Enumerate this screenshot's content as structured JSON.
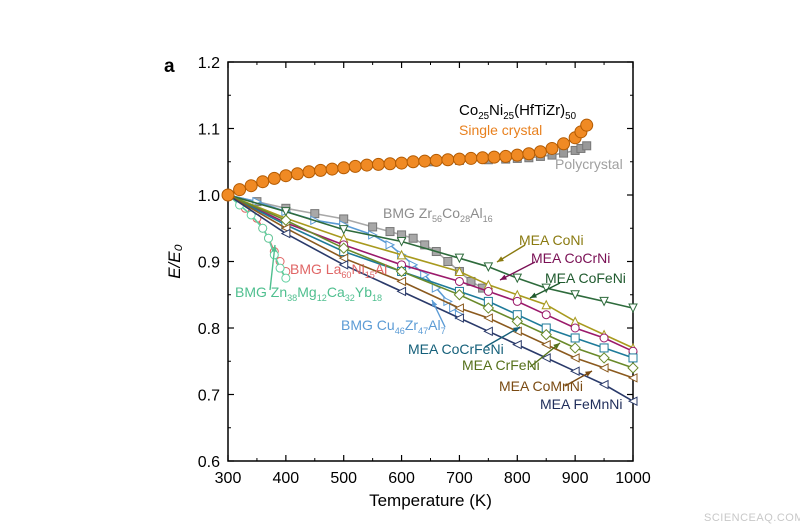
{
  "panel_label": "a",
  "watermark": "SCIENCEAQ.COM",
  "chart_data": {
    "type": "line",
    "xlabel": "Temperature (K)",
    "ylabel": "E/E₀",
    "xlim": [
      300,
      1000
    ],
    "ylim": [
      0.6,
      1.2
    ],
    "xticks": [
      300,
      400,
      500,
      600,
      700,
      800,
      900,
      1000
    ],
    "yticks": [
      0.6,
      0.7,
      0.8,
      0.9,
      1.0,
      1.1,
      1.2
    ],
    "grid": false,
    "annotations": {
      "alloy_title": {
        "base": "Co",
        "sub1": "25",
        "mid": "Ni",
        "sub2": "25",
        "tail": "(HfTiZr)",
        "sub3": "50"
      },
      "bmg_zr": [
        {
          "t": "BMG Zr"
        },
        {
          "t": "56",
          "sub": true
        },
        {
          "t": "Co"
        },
        {
          "t": "28",
          "sub": true
        },
        {
          "t": "Al"
        },
        {
          "t": "16",
          "sub": true
        }
      ],
      "bmg_la": [
        {
          "t": "BMG La"
        },
        {
          "t": "60",
          "sub": true
        },
        {
          "t": "Ni"
        },
        {
          "t": "15",
          "sub": true
        },
        {
          "t": "Al"
        }
      ],
      "bmg_zn": [
        {
          "t": "BMG Zn"
        },
        {
          "t": "38",
          "sub": true
        },
        {
          "t": "Mg"
        },
        {
          "t": "12",
          "sub": true
        },
        {
          "t": "Ca"
        },
        {
          "t": "32",
          "sub": true
        },
        {
          "t": "Yb"
        },
        {
          "t": "18",
          "sub": true
        }
      ],
      "bmg_cu": [
        {
          "t": "BMG Cu"
        },
        {
          "t": "46",
          "sub": true
        },
        {
          "t": "Zr"
        },
        {
          "t": "47",
          "sub": true
        },
        {
          "t": "Al"
        },
        {
          "t": "7",
          "sub": true
        }
      ]
    },
    "series": [
      {
        "name": "Single crystal",
        "color": "#f08a24",
        "marker": "circle-filled",
        "x": [
          300,
          320,
          340,
          360,
          380,
          400,
          420,
          440,
          460,
          480,
          500,
          520,
          540,
          560,
          580,
          600,
          620,
          640,
          660,
          680,
          700,
          720,
          740,
          760,
          780,
          800,
          820,
          840,
          860,
          880,
          900,
          910,
          920
        ],
        "y": [
          1.0,
          1.008,
          1.014,
          1.02,
          1.025,
          1.029,
          1.032,
          1.035,
          1.037,
          1.039,
          1.041,
          1.043,
          1.045,
          1.046,
          1.047,
          1.048,
          1.05,
          1.051,
          1.052,
          1.053,
          1.054,
          1.055,
          1.056,
          1.057,
          1.058,
          1.06,
          1.062,
          1.065,
          1.07,
          1.077,
          1.086,
          1.095,
          1.105
        ]
      },
      {
        "name": "Polycrystal",
        "color": "#999999",
        "marker": "square-filled",
        "x": [
          600,
          650,
          700,
          750,
          780,
          800,
          820,
          840,
          860,
          880,
          900,
          910,
          920
        ],
        "y": [
          1.048,
          1.05,
          1.052,
          1.053,
          1.054,
          1.055,
          1.056,
          1.058,
          1.06,
          1.063,
          1.067,
          1.07,
          1.074
        ]
      },
      {
        "name": "BMG Zr56Co28Al16",
        "color": "#a8a8a8",
        "marker": "square-filled",
        "x": [
          300,
          350,
          400,
          450,
          500,
          550,
          580,
          600,
          620,
          640,
          660,
          680,
          700,
          720,
          740
        ],
        "y": [
          1.0,
          0.99,
          0.98,
          0.972,
          0.964,
          0.952,
          0.945,
          0.94,
          0.935,
          0.925,
          0.915,
          0.9,
          0.885,
          0.87,
          0.86
        ]
      },
      {
        "name": "BMG La60Ni15Al",
        "color": "#e06666",
        "marker": "circle-open",
        "x": [
          300,
          330,
          350,
          360,
          370,
          380,
          390,
          400
        ],
        "y": [
          1.0,
          0.98,
          0.965,
          0.95,
          0.935,
          0.915,
          0.9,
          0.885
        ]
      },
      {
        "name": "BMG Zn38Mg12Ca32Yb18",
        "color": "#5fd0a0",
        "marker": "circle-open",
        "x": [
          300,
          320,
          340,
          360,
          370,
          380,
          390,
          400
        ],
        "y": [
          1.0,
          0.985,
          0.97,
          0.95,
          0.935,
          0.91,
          0.89,
          0.875
        ]
      },
      {
        "name": "BMG Cu46Zr47Al7",
        "color": "#5b9bd5",
        "marker": "triangle-right-open",
        "x": [
          300,
          350,
          400,
          450,
          500,
          550,
          580,
          600,
          620,
          640,
          660,
          680,
          690,
          700
        ],
        "y": [
          1.0,
          0.99,
          0.975,
          0.962,
          0.955,
          0.94,
          0.925,
          0.91,
          0.895,
          0.88,
          0.86,
          0.84,
          0.83,
          0.82
        ]
      },
      {
        "name": "MEA CoNi",
        "color": "#a89a1e",
        "marker": "triangle-up-open",
        "x": [
          300,
          400,
          500,
          600,
          700,
          750,
          800,
          850,
          900,
          950,
          1000
        ],
        "y": [
          1.0,
          0.965,
          0.935,
          0.91,
          0.885,
          0.865,
          0.85,
          0.835,
          0.81,
          0.79,
          0.77
        ]
      },
      {
        "name": "MEA CoCrNi",
        "color": "#9b1a6b",
        "marker": "circle-open",
        "x": [
          300,
          400,
          500,
          600,
          700,
          750,
          800,
          850,
          900,
          950,
          1000
        ],
        "y": [
          1.0,
          0.958,
          0.925,
          0.895,
          0.87,
          0.855,
          0.84,
          0.82,
          0.8,
          0.785,
          0.765
        ]
      },
      {
        "name": "MEA CoFeNi",
        "color": "#2e6b3c",
        "marker": "triangle-down-open",
        "x": [
          300,
          400,
          500,
          600,
          700,
          750,
          800,
          850,
          900,
          950,
          1000
        ],
        "y": [
          1.0,
          0.975,
          0.948,
          0.93,
          0.905,
          0.892,
          0.875,
          0.86,
          0.85,
          0.84,
          0.83
        ]
      },
      {
        "name": "MEA CoCrFeNi",
        "color": "#1e7b9a",
        "marker": "square-open",
        "x": [
          300,
          400,
          500,
          600,
          700,
          750,
          800,
          850,
          900,
          950,
          1000
        ],
        "y": [
          1.0,
          0.955,
          0.915,
          0.885,
          0.855,
          0.84,
          0.82,
          0.8,
          0.785,
          0.77,
          0.755
        ]
      },
      {
        "name": "MEA CrFeNi",
        "color": "#6a8a2a",
        "marker": "diamond-open",
        "x": [
          300,
          400,
          500,
          600,
          700,
          750,
          800,
          850,
          900,
          950,
          1000
        ],
        "y": [
          1.0,
          0.962,
          0.92,
          0.885,
          0.85,
          0.83,
          0.81,
          0.79,
          0.77,
          0.755,
          0.74
        ]
      },
      {
        "name": "MEA CoMnNi",
        "color": "#8b5a1e",
        "marker": "triangle-left-open",
        "x": [
          300,
          400,
          500,
          600,
          700,
          750,
          800,
          850,
          900,
          950,
          1000
        ],
        "y": [
          1.0,
          0.95,
          0.905,
          0.87,
          0.83,
          0.815,
          0.795,
          0.775,
          0.755,
          0.74,
          0.725
        ]
      },
      {
        "name": "MEA FeMnNi",
        "color": "#2a3a6a",
        "marker": "triangle-left-open",
        "x": [
          300,
          400,
          500,
          600,
          700,
          750,
          800,
          850,
          900,
          950,
          1000
        ],
        "y": [
          1.0,
          0.942,
          0.895,
          0.855,
          0.815,
          0.795,
          0.775,
          0.755,
          0.735,
          0.715,
          0.69
        ]
      }
    ]
  }
}
